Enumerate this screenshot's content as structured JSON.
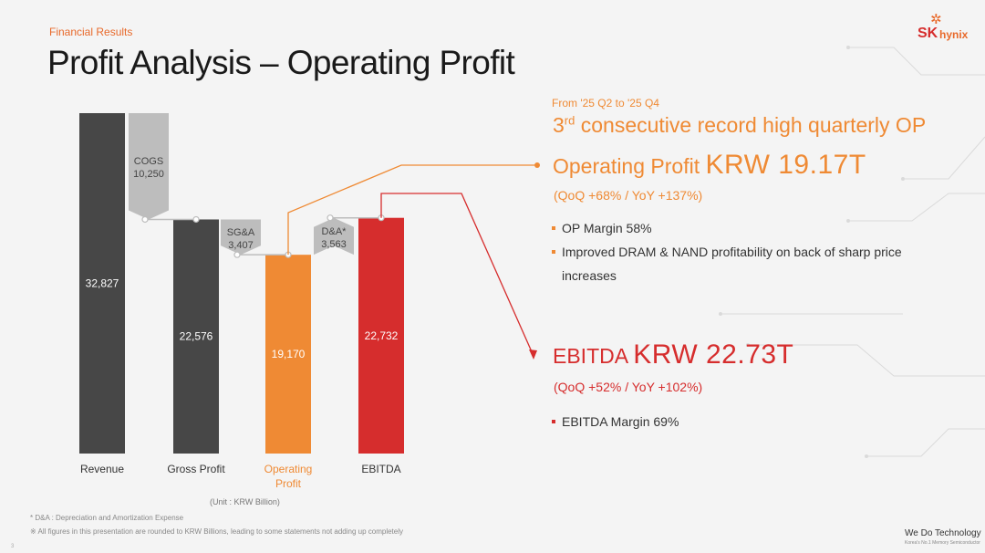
{
  "header": {
    "section_label": "Financial Results",
    "title": "Profit Analysis – Operating Profit",
    "logo_mark": "✲",
    "logo_sk": "SK",
    "logo_hynix": "hynix"
  },
  "colors": {
    "revenue": "#474747",
    "gross_profit": "#474747",
    "operating_profit": "#ef8a34",
    "ebitda": "#d62d2d",
    "cost_steps": "#bdbdbd",
    "accent_orange": "#ef8a34",
    "accent_red": "#d62d2d"
  },
  "chart_data": {
    "type": "bar",
    "subtype": "waterfall",
    "unit": "(Unit : KRW Billion)",
    "categories": [
      "Revenue",
      "Gross Profit",
      "Operating\nProfit",
      "EBITDA"
    ],
    "bars": [
      {
        "category": "Revenue",
        "value": 32827,
        "label": "32,827",
        "color": "revenue"
      },
      {
        "category": "Gross Profit",
        "value": 22576,
        "label": "22,576",
        "color": "gross_profit"
      },
      {
        "category": "Operating Profit",
        "value": 19170,
        "label": "19,170",
        "color": "operating_profit"
      },
      {
        "category": "EBITDA",
        "value": 22732,
        "label": "22,732",
        "color": "ebitda"
      }
    ],
    "steps": [
      {
        "name": "COGS",
        "value": 10250,
        "label": "10,250",
        "from": 32827,
        "to": 22576
      },
      {
        "name": "SG&A",
        "value": 3407,
        "label": "3,407",
        "from": 22576,
        "to": 19170
      },
      {
        "name": "D&A*",
        "value": 3563,
        "label": "3,563",
        "from": 19170,
        "to": 22732
      }
    ],
    "ylim": [
      0,
      32827
    ],
    "grid": false,
    "legend": "none"
  },
  "highlights": {
    "period": "From '25 Q2 to '25 Q4",
    "record_pre": "3",
    "record_sup": "rd",
    "record_post": " consecutive record high quarterly OP",
    "op_label": "Operating Profit ",
    "op_value": "KRW 19.17T",
    "op_change": "(QoQ +68% / YoY +137%)",
    "op_bullets": [
      "OP Margin 58%",
      "Improved DRAM & NAND profitability on back of sharp price increases"
    ],
    "ebitda_label": "EBITDA ",
    "ebitda_value": "KRW 22.73T",
    "ebitda_change": "(QoQ +52% / YoY +102%)",
    "ebitda_bullets": [
      "EBITDA Margin 69%"
    ]
  },
  "footer": {
    "note1": "* D&A : Depreciation and Amortization Expense",
    "note2": "※ All figures in this presentation are rounded to KRW Billions, leading to some statements not adding up completely",
    "page_number": "3",
    "tagline": "We Do Technology",
    "tagline_sub": "Korea's No.1 Memory Semiconductor"
  }
}
